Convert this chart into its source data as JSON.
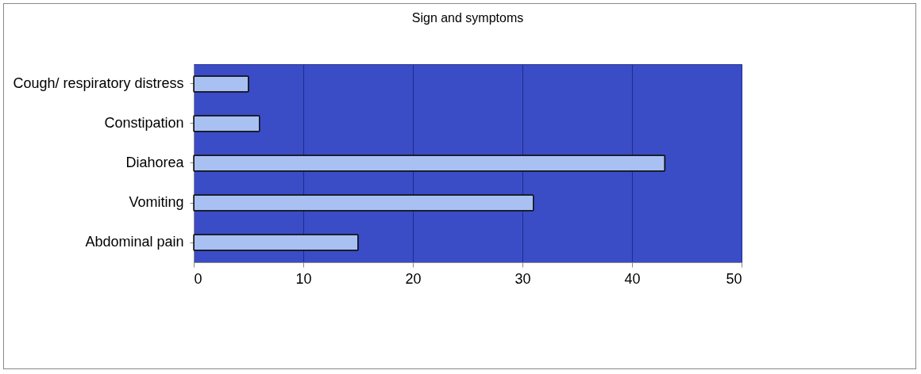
{
  "chart_data": {
    "type": "bar",
    "orientation": "horizontal",
    "title": "Sign and symptoms",
    "categories": [
      "Cough/ respiratory distress",
      "Constipation",
      "Diahorea",
      "Vomiting",
      "Abdominal pain"
    ],
    "values": [
      5,
      6,
      43,
      31,
      15
    ],
    "color": "#a9c1f2",
    "xlim": [
      0,
      50
    ],
    "xticks": [
      0,
      10,
      20,
      30,
      40,
      50
    ],
    "grid": "x"
  }
}
